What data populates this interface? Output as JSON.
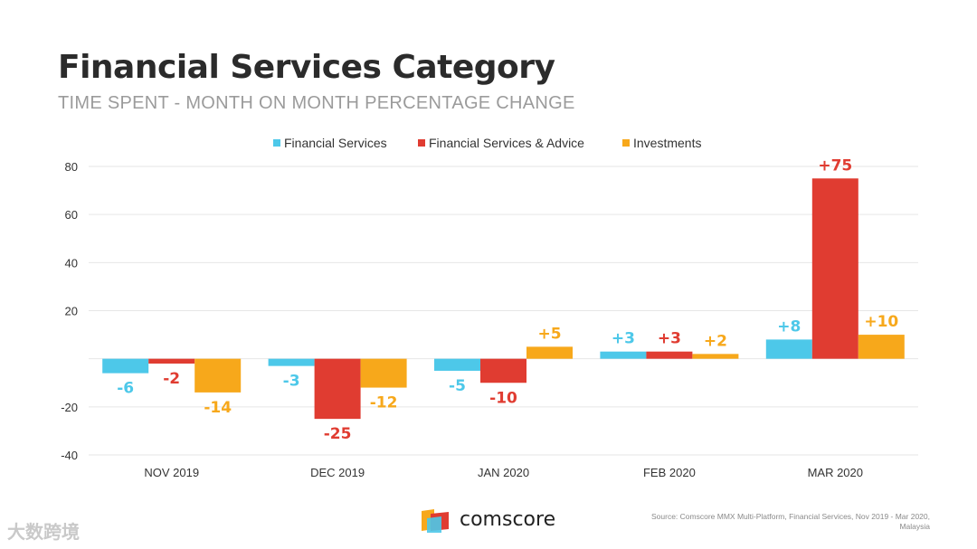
{
  "header": {
    "title": "Financial Services Category",
    "subtitle": "TIME SPENT - MONTH ON MONTH PERCENTAGE CHANGE"
  },
  "footer": {
    "brand": "comscore",
    "source": "Source: Comscore MMX Multi-Platform, Financial Services, Nov 2019 - Mar 2020, Malaysia",
    "watermark": "大数跨境"
  },
  "colors": {
    "financial_services": "#4dc8e9",
    "financial_services_advice": "#e03c31",
    "investments": "#f7a81b",
    "grid": "#e6e6e6",
    "axis_text": "#333333"
  },
  "chart_data": {
    "type": "bar",
    "title": "Financial Services Category",
    "subtitle": "TIME SPENT - MONTH ON MONTH PERCENTAGE CHANGE",
    "categories": [
      "NOV 2019",
      "DEC 2019",
      "JAN 2020",
      "FEB 2020",
      "MAR 2020"
    ],
    "series": [
      {
        "name": "Financial Services",
        "color": "#4dc8e9",
        "values": [
          -6,
          -3,
          -5,
          3,
          8
        ],
        "labels": [
          "-6",
          "-3",
          "-5",
          "+3",
          "+8"
        ]
      },
      {
        "name": "Financial Services & Advice",
        "color": "#e03c31",
        "values": [
          -2,
          -25,
          -10,
          3,
          75
        ],
        "labels": [
          "-2",
          "-25",
          "-10",
          "+3",
          "+75"
        ]
      },
      {
        "name": "Investments",
        "color": "#f7a81b",
        "values": [
          -14,
          -12,
          5,
          2,
          10
        ],
        "labels": [
          "-14",
          "-12",
          "+5",
          "+2",
          "+10"
        ]
      }
    ],
    "yticks": [
      80,
      60,
      40,
      20,
      -20,
      -40
    ],
    "ylim": [
      -40,
      80
    ],
    "grid": true,
    "legend": "top-center",
    "xlabel": "",
    "ylabel": ""
  }
}
